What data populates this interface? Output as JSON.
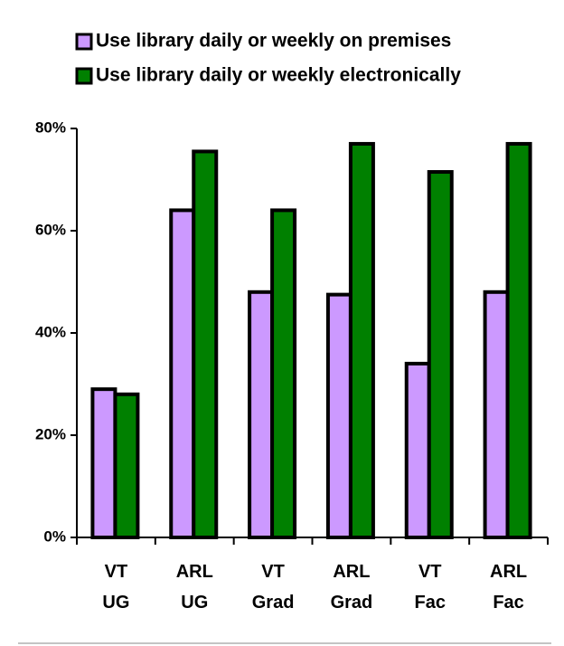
{
  "chart_data": {
    "type": "bar",
    "categories": [
      "VT UG",
      "ARL UG",
      "VT Grad",
      "ARL Grad",
      "VT Fac",
      "ARL Fac"
    ],
    "series": [
      {
        "name": "Use library daily or weekly on premises",
        "color": "#cc99ff",
        "values": [
          29,
          64,
          48,
          47.5,
          34,
          48
        ]
      },
      {
        "name": "Use library daily or weekly electronically",
        "color": "#008000",
        "values": [
          28,
          75.5,
          64,
          77,
          71.5,
          77
        ]
      }
    ],
    "ylim": [
      0,
      80
    ],
    "yticks": [
      {
        "value": 0,
        "label": "0%"
      },
      {
        "value": 20,
        "label": "20%"
      },
      {
        "value": 40,
        "label": "40%"
      },
      {
        "value": 60,
        "label": "60%"
      },
      {
        "value": 80,
        "label": "80%"
      }
    ],
    "legend": "top"
  }
}
